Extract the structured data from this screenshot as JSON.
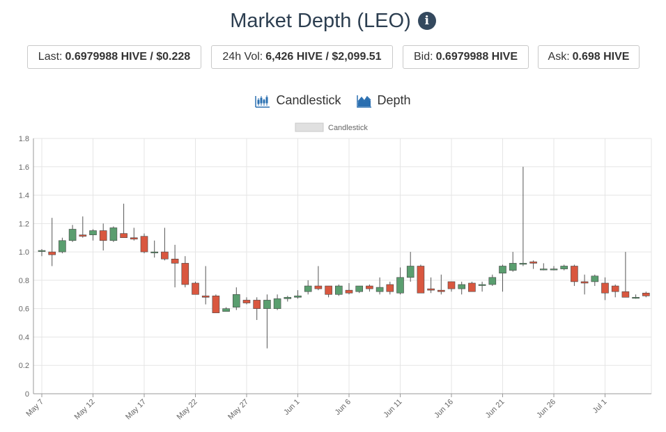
{
  "header": {
    "title": "Market Depth (LEO)",
    "info_icon": "info-circle-icon"
  },
  "stats": [
    {
      "label": "Last:",
      "value": "0.6979988 HIVE / $0.228"
    },
    {
      "label": "24h Vol:",
      "value": "6,426 HIVE / $2,099.51"
    },
    {
      "label": "Bid:",
      "value": "0.6979988 HIVE"
    },
    {
      "label": "Ask:",
      "value": "0.698 HIVE"
    }
  ],
  "tabs": [
    {
      "label": "Candlestick",
      "icon": "candlestick-icon"
    },
    {
      "label": "Depth",
      "icon": "area-chart-icon"
    }
  ],
  "colors": {
    "up": "#5a9e6f",
    "down": "#d9573f",
    "grid": "#e5e5e5",
    "title": "#2c3e50",
    "tab_icon": "#2a6fb0"
  },
  "chart_data": {
    "type": "candlestick",
    "legend": [
      "Candlestick"
    ],
    "legend_position": "top-center",
    "grid": true,
    "ylim": [
      0,
      1.8
    ],
    "yticks": [
      "0",
      "0.2",
      "0.4",
      "0.6",
      "0.8",
      "1.0",
      "1.2",
      "1.4",
      "1.6",
      "1.8"
    ],
    "xticks": [
      {
        "label": "May 7",
        "index": 0
      },
      {
        "label": "May 12",
        "index": 5
      },
      {
        "label": "May 17",
        "index": 10
      },
      {
        "label": "May 22",
        "index": 15
      },
      {
        "label": "May 27",
        "index": 20
      },
      {
        "label": "Jun 1",
        "index": 25
      },
      {
        "label": "Jun 6",
        "index": 30
      },
      {
        "label": "Jun 11",
        "index": 35
      },
      {
        "label": "Jun 16",
        "index": 40
      },
      {
        "label": "Jun 21",
        "index": 45
      },
      {
        "label": "Jun 26",
        "index": 50
      },
      {
        "label": "Jul 1",
        "index": 55
      }
    ],
    "candles": [
      {
        "date": "May 7",
        "open": 1.01,
        "high": 1.02,
        "low": 0.97,
        "close": 1.01
      },
      {
        "date": "May 8",
        "open": 1.0,
        "high": 1.24,
        "low": 0.9,
        "close": 0.98
      },
      {
        "date": "May 9",
        "open": 1.0,
        "high": 1.1,
        "low": 0.99,
        "close": 1.08
      },
      {
        "date": "May 10",
        "open": 1.08,
        "high": 1.19,
        "low": 1.07,
        "close": 1.16
      },
      {
        "date": "May 11",
        "open": 1.12,
        "high": 1.25,
        "low": 1.1,
        "close": 1.11
      },
      {
        "date": "May 12",
        "open": 1.12,
        "high": 1.16,
        "low": 1.08,
        "close": 1.15
      },
      {
        "date": "May 13",
        "open": 1.15,
        "high": 1.2,
        "low": 1.01,
        "close": 1.08
      },
      {
        "date": "May 14",
        "open": 1.08,
        "high": 1.18,
        "low": 1.07,
        "close": 1.17
      },
      {
        "date": "May 15",
        "open": 1.13,
        "high": 1.34,
        "low": 1.1,
        "close": 1.1
      },
      {
        "date": "May 16",
        "open": 1.1,
        "high": 1.17,
        "low": 1.08,
        "close": 1.09
      },
      {
        "date": "May 17",
        "open": 1.11,
        "high": 1.13,
        "low": 0.99,
        "close": 1.0
      },
      {
        "date": "May 18",
        "open": 1.0,
        "high": 1.08,
        "low": 0.96,
        "close": 1.0
      },
      {
        "date": "May 19",
        "open": 1.0,
        "high": 1.17,
        "low": 0.94,
        "close": 0.95
      },
      {
        "date": "May 20",
        "open": 0.95,
        "high": 1.05,
        "low": 0.75,
        "close": 0.92
      },
      {
        "date": "May 21",
        "open": 0.92,
        "high": 0.97,
        "low": 0.75,
        "close": 0.77
      },
      {
        "date": "May 22",
        "open": 0.78,
        "high": 0.79,
        "low": 0.7,
        "close": 0.7
      },
      {
        "date": "May 23",
        "open": 0.69,
        "high": 0.9,
        "low": 0.63,
        "close": 0.68
      },
      {
        "date": "May 24",
        "open": 0.69,
        "high": 0.7,
        "low": 0.57,
        "close": 0.57
      },
      {
        "date": "May 25",
        "open": 0.58,
        "high": 0.61,
        "low": 0.58,
        "close": 0.6
      },
      {
        "date": "May 26",
        "open": 0.61,
        "high": 0.75,
        "low": 0.59,
        "close": 0.7
      },
      {
        "date": "May 27",
        "open": 0.66,
        "high": 0.68,
        "low": 0.63,
        "close": 0.64
      },
      {
        "date": "May 28",
        "open": 0.66,
        "high": 0.68,
        "low": 0.52,
        "close": 0.6
      },
      {
        "date": "May 29",
        "open": 0.6,
        "high": 0.7,
        "low": 0.32,
        "close": 0.66
      },
      {
        "date": "May 30",
        "open": 0.6,
        "high": 0.7,
        "low": 0.59,
        "close": 0.67
      },
      {
        "date": "May 31",
        "open": 0.67,
        "high": 0.69,
        "low": 0.65,
        "close": 0.68
      },
      {
        "date": "Jun 1",
        "open": 0.68,
        "high": 0.73,
        "low": 0.67,
        "close": 0.69
      },
      {
        "date": "Jun 2",
        "open": 0.72,
        "high": 0.8,
        "low": 0.7,
        "close": 0.76
      },
      {
        "date": "Jun 3",
        "open": 0.76,
        "high": 0.9,
        "low": 0.73,
        "close": 0.74
      },
      {
        "date": "Jun 4",
        "open": 0.76,
        "high": 0.76,
        "low": 0.68,
        "close": 0.7
      },
      {
        "date": "Jun 5",
        "open": 0.7,
        "high": 0.77,
        "low": 0.69,
        "close": 0.76
      },
      {
        "date": "Jun 6",
        "open": 0.73,
        "high": 0.78,
        "low": 0.7,
        "close": 0.71
      },
      {
        "date": "Jun 7",
        "open": 0.72,
        "high": 0.76,
        "low": 0.71,
        "close": 0.76
      },
      {
        "date": "Jun 8",
        "open": 0.76,
        "high": 0.77,
        "low": 0.72,
        "close": 0.74
      },
      {
        "date": "Jun 9",
        "open": 0.72,
        "high": 0.82,
        "low": 0.7,
        "close": 0.75
      },
      {
        "date": "Jun 10",
        "open": 0.77,
        "high": 0.79,
        "low": 0.7,
        "close": 0.72
      },
      {
        "date": "Jun 11",
        "open": 0.71,
        "high": 0.89,
        "low": 0.7,
        "close": 0.82
      },
      {
        "date": "Jun 12",
        "open": 0.82,
        "high": 1.0,
        "low": 0.79,
        "close": 0.9
      },
      {
        "date": "Jun 13",
        "open": 0.9,
        "high": 0.91,
        "low": 0.71,
        "close": 0.71
      },
      {
        "date": "Jun 14",
        "open": 0.74,
        "high": 0.82,
        "low": 0.71,
        "close": 0.73
      },
      {
        "date": "Jun 15",
        "open": 0.73,
        "high": 0.84,
        "low": 0.7,
        "close": 0.72
      },
      {
        "date": "Jun 16",
        "open": 0.79,
        "high": 0.79,
        "low": 0.72,
        "close": 0.74
      },
      {
        "date": "Jun 17",
        "open": 0.74,
        "high": 0.79,
        "low": 0.7,
        "close": 0.77
      },
      {
        "date": "Jun 18",
        "open": 0.78,
        "high": 0.79,
        "low": 0.72,
        "close": 0.72
      },
      {
        "date": "Jun 19",
        "open": 0.77,
        "high": 0.79,
        "low": 0.72,
        "close": 0.77
      },
      {
        "date": "Jun 20",
        "open": 0.77,
        "high": 0.84,
        "low": 0.76,
        "close": 0.82
      },
      {
        "date": "Jun 21",
        "open": 0.85,
        "high": 0.91,
        "low": 0.72,
        "close": 0.9
      },
      {
        "date": "Jun 22",
        "open": 0.87,
        "high": 1.0,
        "low": 0.86,
        "close": 0.92
      },
      {
        "date": "Jun 23",
        "open": 0.92,
        "high": 1.6,
        "low": 0.9,
        "close": 0.92
      },
      {
        "date": "Jun 24",
        "open": 0.93,
        "high": 0.94,
        "low": 0.88,
        "close": 0.92
      },
      {
        "date": "Jun 25",
        "open": 0.88,
        "high": 0.92,
        "low": 0.87,
        "close": 0.88
      },
      {
        "date": "Jun 26",
        "open": 0.88,
        "high": 0.9,
        "low": 0.87,
        "close": 0.88
      },
      {
        "date": "Jun 27",
        "open": 0.88,
        "high": 0.91,
        "low": 0.87,
        "close": 0.9
      },
      {
        "date": "Jun 28",
        "open": 0.9,
        "high": 0.91,
        "low": 0.76,
        "close": 0.79
      },
      {
        "date": "Jun 29",
        "open": 0.79,
        "high": 0.84,
        "low": 0.7,
        "close": 0.78
      },
      {
        "date": "Jun 30",
        "open": 0.79,
        "high": 0.84,
        "low": 0.76,
        "close": 0.83
      },
      {
        "date": "Jul 1",
        "open": 0.78,
        "high": 0.82,
        "low": 0.66,
        "close": 0.71
      },
      {
        "date": "Jul 2",
        "open": 0.76,
        "high": 0.77,
        "low": 0.68,
        "close": 0.72
      },
      {
        "date": "Jul 3",
        "open": 0.72,
        "high": 1.0,
        "low": 0.68,
        "close": 0.68
      },
      {
        "date": "Jul 4",
        "open": 0.68,
        "high": 0.7,
        "low": 0.67,
        "close": 0.68
      },
      {
        "date": "Jul 5",
        "open": 0.71,
        "high": 0.72,
        "low": 0.68,
        "close": 0.69
      }
    ]
  }
}
